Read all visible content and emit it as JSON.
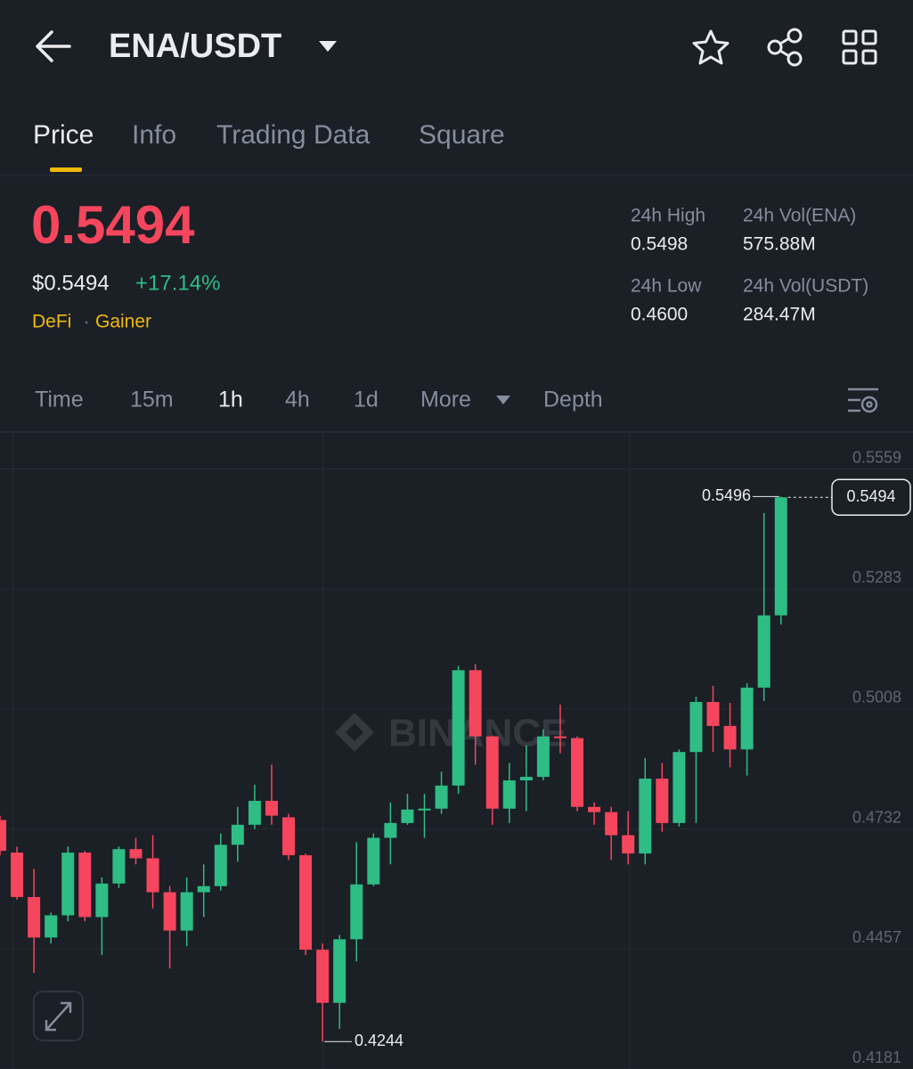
{
  "header": {
    "title": "ENA/USDT"
  },
  "tabs": [
    "Price",
    "Info",
    "Trading Data",
    "Square"
  ],
  "ticker": {
    "price": "0.5494",
    "usd_price": "$0.5494",
    "change": "+17.14%",
    "tags": [
      "DeFi",
      "Gainer"
    ],
    "stats": [
      {
        "label": "24h High",
        "value": "0.5498"
      },
      {
        "label": "24h Vol(ENA)",
        "value": "575.88M"
      },
      {
        "label": "24h Low",
        "value": "0.4600"
      },
      {
        "label": "24h Vol(USDT)",
        "value": "284.47M"
      }
    ]
  },
  "intervals": [
    "Time",
    "15m",
    "1h",
    "4h",
    "1d",
    "More",
    "Depth"
  ],
  "chart_data": {
    "type": "candlestick",
    "watermark": "BINANCE",
    "open": [
      0.4753,
      0.4678,
      0.4576,
      0.4483,
      0.4534,
      0.4678,
      0.453,
      0.4607,
      0.4686,
      0.4665,
      0.4587,
      0.4499,
      0.4587,
      0.4601,
      0.4696,
      0.4742,
      0.4797,
      0.4759,
      0.4672,
      0.4455,
      0.4333,
      0.4479,
      0.4605,
      0.4712,
      0.4746,
      0.4777,
      0.4779,
      0.4832,
      0.5097,
      0.4945,
      0.4779,
      0.4844,
      0.4852,
      0.4945,
      0.4941,
      0.4783,
      0.4771,
      0.4718,
      0.4676,
      0.4848,
      0.4746,
      0.4909,
      0.5024,
      0.4969,
      0.4915,
      0.5057,
      0.5223
    ],
    "high": [
      0.4763,
      0.4692,
      0.4641,
      0.454,
      0.4692,
      0.4682,
      0.4621,
      0.4692,
      0.4712,
      0.4718,
      0.4601,
      0.4621,
      0.4651,
      0.4722,
      0.4783,
      0.4834,
      0.488,
      0.4767,
      0.4676,
      0.4469,
      0.4489,
      0.4702,
      0.4722,
      0.4793,
      0.4813,
      0.4813,
      0.4864,
      0.5107,
      0.5111,
      0.4947,
      0.4884,
      0.4925,
      0.4961,
      0.5018,
      0.4945,
      0.4793,
      0.4783,
      0.4773,
      0.4895,
      0.4884,
      0.4915,
      0.5036,
      0.5061,
      0.5022,
      0.5067,
      0.5458,
      0.5496
    ],
    "low": [
      0.4672,
      0.457,
      0.4402,
      0.4469,
      0.452,
      0.452,
      0.4443,
      0.4597,
      0.4651,
      0.455,
      0.4412,
      0.4463,
      0.453,
      0.4591,
      0.4657,
      0.4732,
      0.4742,
      0.4661,
      0.4443,
      0.4244,
      0.4273,
      0.4428,
      0.4601,
      0.4651,
      0.4742,
      0.4712,
      0.4767,
      0.4813,
      0.488,
      0.4742,
      0.4746,
      0.4773,
      0.4844,
      0.4906,
      0.4773,
      0.4742,
      0.4661,
      0.4651,
      0.4651,
      0.4726,
      0.4738,
      0.4746,
      0.4909,
      0.4874,
      0.4855,
      0.5026,
      0.5202
    ],
    "close": [
      0.4682,
      0.4576,
      0.4483,
      0.4534,
      0.4678,
      0.453,
      0.4607,
      0.4686,
      0.4665,
      0.4587,
      0.4499,
      0.4587,
      0.4601,
      0.4696,
      0.4742,
      0.4797,
      0.4763,
      0.4672,
      0.4455,
      0.4333,
      0.4479,
      0.4605,
      0.4712,
      0.4746,
      0.4777,
      0.4779,
      0.4832,
      0.5097,
      0.4945,
      0.4779,
      0.4844,
      0.4852,
      0.4945,
      0.4941,
      0.4783,
      0.4771,
      0.4718,
      0.4676,
      0.4848,
      0.4746,
      0.4909,
      0.5024,
      0.4969,
      0.4915,
      0.5057,
      0.5223,
      0.5494
    ],
    "up_color": "#2ebd85",
    "down_color": "#f6465d",
    "ylim": [
      0.4181,
      0.5644
    ],
    "yticks": [
      0.5559,
      0.5283,
      0.5008,
      0.4732,
      0.4457,
      0.4181
    ],
    "grid": true,
    "annotations": {
      "high": 0.5496,
      "low": 0.4244,
      "last": 0.5494
    }
  }
}
